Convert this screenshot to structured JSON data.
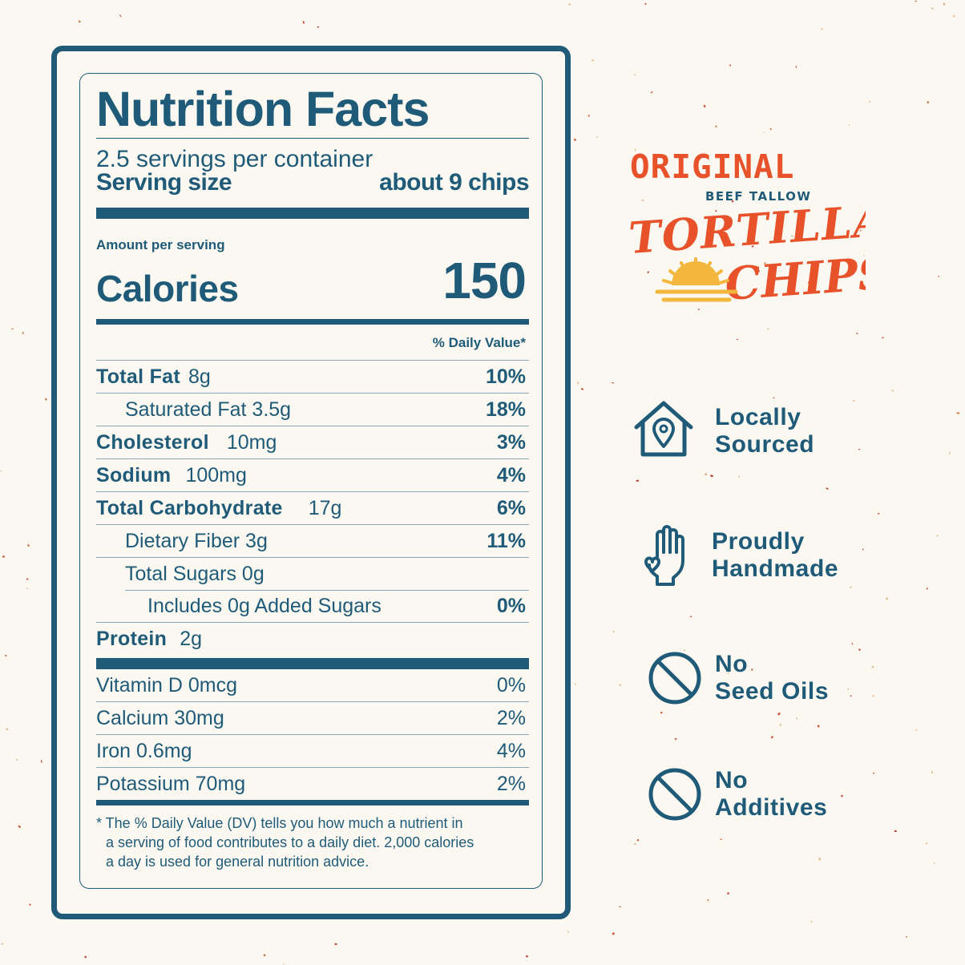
{
  "label": {
    "title": "Nutrition Facts",
    "servings_per_container": "2.5 servings per container",
    "serving_size_label": "Serving size",
    "serving_size_value": "about 9 chips",
    "amount_per_serving": "Amount per serving",
    "calories_label": "Calories",
    "calories_value": "150",
    "daily_value_header": "% Daily Value*",
    "nutrients": [
      {
        "name": "Total Fat",
        "amount": "8g",
        "dv": "10%"
      },
      {
        "name": "Saturated Fat 3.5g",
        "amount": "",
        "dv": "18%"
      },
      {
        "name": "Cholesterol",
        "amount": "10mg",
        "dv": "3%"
      },
      {
        "name": "Sodium",
        "amount": "100mg",
        "dv": "4%"
      },
      {
        "name": "Total Carbohydrate",
        "amount": "17g",
        "dv": "6%"
      },
      {
        "name": "Dietary Fiber 3g",
        "amount": "",
        "dv": "11%"
      },
      {
        "name": "Total Sugars 0g",
        "amount": "",
        "dv": ""
      },
      {
        "name": "Includes 0g Added Sugars",
        "amount": "",
        "dv": "0%"
      },
      {
        "name": "Protein",
        "amount": "2g",
        "dv": ""
      }
    ],
    "vitamins": [
      {
        "name": "Vitamin D 0mcg",
        "dv": "0%"
      },
      {
        "name": "Calcium 30mg",
        "dv": "2%"
      },
      {
        "name": "Iron 0.6mg",
        "dv": "4%"
      },
      {
        "name": "Potassium 70mg",
        "dv": "2%"
      }
    ],
    "footnote_line1": "* The % Daily Value (DV) tells you how much a nutrient in",
    "footnote_line2": "a serving of food contributes to a daily diet. 2,000 calories",
    "footnote_line3": "a day is used for general nutrition advice."
  },
  "brand": {
    "line1": "ORIGINAL",
    "line2": "BEEF TALLOW",
    "line3": "TORTILLA",
    "line4": "CHIPS",
    "colors": {
      "orange": "#e8522a",
      "yellow": "#f2b73c",
      "teal": "#1f5b78"
    }
  },
  "features": [
    {
      "line1": "Locally",
      "line2": "Sourced",
      "icon": "house-location-icon"
    },
    {
      "line1": "Proudly",
      "line2": "Handmade",
      "icon": "raised-hand-heart-icon"
    },
    {
      "line1": "No",
      "line2": "Seed Oils",
      "icon": "prohibited-icon"
    },
    {
      "line1": "No",
      "line2": "Additives",
      "icon": "prohibited-icon"
    }
  ],
  "theme": {
    "background": "#fbf8f1",
    "ink": "#1f5b78"
  }
}
